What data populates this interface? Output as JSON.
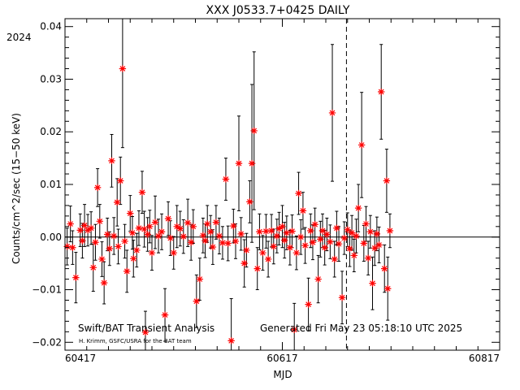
{
  "chart_data": {
    "type": "scatter",
    "title": "XXX J0533.7+0425 DAILY",
    "xlabel": "MJD",
    "ylabel": "Counts/cm^2/sec (15−50 keV)",
    "year_label": "2024",
    "xlim": [
      60417,
      60817
    ],
    "ylim": [
      -0.0215,
      0.0415
    ],
    "x_ticks": [
      60417,
      60617,
      60817
    ],
    "x_tick_labels": [
      "60417",
      "60617",
      "60817"
    ],
    "y_ticks": [
      -0.02,
      -0.01,
      0.0,
      0.01,
      0.02,
      0.03,
      0.04
    ],
    "y_tick_labels": [
      "−0.02",
      "−0.01",
      "0.00",
      "0.01",
      "0.02",
      "0.03",
      "0.04"
    ],
    "year_boundary_mjd": 60676,
    "zero_line": true,
    "grid": false,
    "marker": "asterisk",
    "marker_color": "#ff0000",
    "errorbar_color": "#000000",
    "footer_left_1": "Swift/BAT Transient Analysis",
    "footer_left_2": "H. Krimm, GSFC/USRA for the BAT team",
    "footer_right": "Generated Fri May 23 05:18:10 UTC 2025",
    "series": [
      {
        "points": [
          [
            60419,
            -0.0018,
            0.0035
          ],
          [
            60427,
            -0.0077,
            0.0048
          ],
          [
            60435,
            0.0022,
            0.004
          ],
          [
            60443,
            -0.0058,
            0.0045
          ],
          [
            60447,
            0.0094,
            0.0036
          ],
          [
            60453,
            -0.0087,
            0.004
          ],
          [
            60460,
            0.0145,
            0.005
          ],
          [
            60465,
            0.0066,
            0.0045
          ],
          [
            60468,
            0.0107,
            0.0045
          ],
          [
            60470,
            0.032,
            0.015
          ],
          [
            60474,
            -0.0065,
            0.004
          ],
          [
            60480,
            -0.0041,
            0.0035
          ],
          [
            60488,
            0.0085,
            0.004
          ],
          [
            60491,
            -0.0181,
            0.004
          ],
          [
            60500,
            0.0028,
            0.005
          ],
          [
            60509,
            -0.0148,
            0.005
          ],
          [
            60520,
            0.002,
            0.004
          ],
          [
            60530,
            0.0027,
            0.0045
          ],
          [
            60538,
            -0.0122,
            0.005
          ],
          [
            60541,
            -0.008,
            0.004
          ],
          [
            60548,
            0.0025,
            0.0035
          ],
          [
            60565,
            0.011,
            0.004
          ],
          [
            60570,
            -0.0197,
            0.008
          ],
          [
            60577,
            0.014,
            0.009
          ],
          [
            60582,
            -0.005,
            0.0045
          ],
          [
            60587,
            0.0067,
            0.004
          ],
          [
            60589,
            0.014,
            0.015
          ],
          [
            60591,
            0.0202,
            0.015
          ],
          [
            60594,
            -0.006,
            0.004
          ],
          [
            60617,
            0.002,
            0.004
          ],
          [
            60628,
            -0.0176,
            0.005
          ],
          [
            60632,
            0.0083,
            0.004
          ],
          [
            60636,
            0.005,
            0.0035
          ],
          [
            60641,
            -0.0128,
            0.005
          ],
          [
            60650,
            -0.008,
            0.0045
          ],
          [
            60663,
            0.0236,
            0.013
          ],
          [
            60672,
            -0.0115,
            0.005
          ],
          [
            60687,
            0.0055,
            0.0045
          ],
          [
            60690,
            0.0175,
            0.01
          ],
          [
            60700,
            -0.0088,
            0.005
          ],
          [
            60708,
            0.0276,
            0.009
          ],
          [
            60711,
            -0.006,
            0.0045
          ],
          [
            60713,
            0.0107,
            0.006
          ],
          [
            60714,
            -0.0098,
            0.006
          ],
          [
            60422,
            0.0025,
            0.0034
          ],
          [
            60424,
            -0.002,
            0.0032
          ],
          [
            60431,
            0.0013,
            0.0031
          ],
          [
            60433,
            -0.0007,
            0.0033
          ],
          [
            60438,
            0.0013,
            0.003
          ],
          [
            60441,
            0.0017,
            0.0031
          ],
          [
            60445,
            -0.001,
            0.0034
          ],
          [
            60449,
            0.003,
            0.0032
          ],
          [
            60451,
            -0.0042,
            0.0033
          ],
          [
            60456,
            0.0005,
            0.0031
          ],
          [
            60458,
            -0.0022,
            0.0032
          ],
          [
            60462,
            0.0002,
            0.0035
          ],
          [
            60466,
            -0.0018,
            0.0033
          ],
          [
            60472,
            -0.0008,
            0.0032
          ],
          [
            60477,
            0.0045,
            0.0034
          ],
          [
            60479,
            0.0008,
            0.0031
          ],
          [
            60483,
            -0.0025,
            0.0032
          ],
          [
            60485,
            0.0017,
            0.0033
          ],
          [
            60490,
            0.0015,
            0.0034
          ],
          [
            60493,
            0.0005,
            0.0032
          ],
          [
            60495,
            0.002,
            0.0031
          ],
          [
            60497,
            -0.003,
            0.0033
          ],
          [
            60503,
            0.0002,
            0.0032
          ],
          [
            60506,
            0.001,
            0.0034
          ],
          [
            60512,
            0.0035,
            0.0032
          ],
          [
            60514,
            -0.0002,
            0.0033
          ],
          [
            60517,
            -0.003,
            0.0031
          ],
          [
            60523,
            0.0016,
            0.0033
          ],
          [
            60526,
            0.0001,
            0.0032
          ],
          [
            60533,
            -0.001,
            0.0034
          ],
          [
            60535,
            0.002,
            0.0032
          ],
          [
            60544,
            0.0003,
            0.0033
          ],
          [
            60546,
            -0.0007,
            0.0032
          ],
          [
            60551,
            0.001,
            0.0031
          ],
          [
            60553,
            -0.0019,
            0.0033
          ],
          [
            60556,
            0.0028,
            0.0032
          ],
          [
            60559,
            0.0002,
            0.0034
          ],
          [
            60562,
            -0.0011,
            0.0031
          ],
          [
            60567,
            -0.0012,
            0.0033
          ],
          [
            60572,
            0.0021,
            0.0032
          ],
          [
            60574,
            -0.0008,
            0.0033
          ],
          [
            60579,
            0.0006,
            0.0031
          ],
          [
            60584,
            -0.0025,
            0.0032
          ],
          [
            60596,
            0.001,
            0.0034
          ],
          [
            60599,
            -0.003,
            0.0033
          ],
          [
            60602,
            0.0011,
            0.0032
          ],
          [
            60604,
            -0.0042,
            0.0034
          ],
          [
            60607,
            0.0012,
            0.0031
          ],
          [
            60609,
            -0.0018,
            0.0033
          ],
          [
            60612,
            0.0002,
            0.0032
          ],
          [
            60614,
            0.0016,
            0.0031
          ],
          [
            60619,
            -0.0006,
            0.0034
          ],
          [
            60621,
            0.0008,
            0.0032
          ],
          [
            60624,
            -0.002,
            0.0033
          ],
          [
            60626,
            0.0011,
            0.0031
          ],
          [
            60630,
            -0.003,
            0.0032
          ],
          [
            60634,
            0.0,
            0.0033
          ],
          [
            60638,
            -0.0016,
            0.0034
          ],
          [
            60643,
            0.0012,
            0.0032
          ],
          [
            60645,
            -0.001,
            0.0033
          ],
          [
            60647,
            0.0024,
            0.0031
          ],
          [
            60652,
            -0.0004,
            0.0034
          ],
          [
            60654,
            0.0012,
            0.0032
          ],
          [
            60656,
            -0.002,
            0.0033
          ],
          [
            60658,
            0.0005,
            0.0031
          ],
          [
            60661,
            -0.0009,
            0.0032
          ],
          [
            60665,
            -0.0042,
            0.0034
          ],
          [
            60667,
            0.0017,
            0.0032
          ],
          [
            60669,
            -0.0013,
            0.0033
          ],
          [
            60674,
            -0.0002,
            0.0031
          ],
          [
            60677,
            0.0014,
            0.0032
          ],
          [
            60679,
            -0.0022,
            0.0034
          ],
          [
            60681,
            0.0008,
            0.0033
          ],
          [
            60683,
            -0.0035,
            0.0031
          ],
          [
            60685,
            0.0002,
            0.0032
          ],
          [
            60692,
            -0.0012,
            0.0034
          ],
          [
            60694,
            0.0025,
            0.0033
          ],
          [
            60696,
            -0.004,
            0.0032
          ],
          [
            60698,
            0.001,
            0.0031
          ],
          [
            60702,
            -0.0021,
            0.0033
          ],
          [
            60704,
            0.0006,
            0.0032
          ],
          [
            60706,
            -0.0015,
            0.0034
          ],
          [
            60716,
            0.0012,
            0.0032
          ]
        ]
      }
    ]
  }
}
